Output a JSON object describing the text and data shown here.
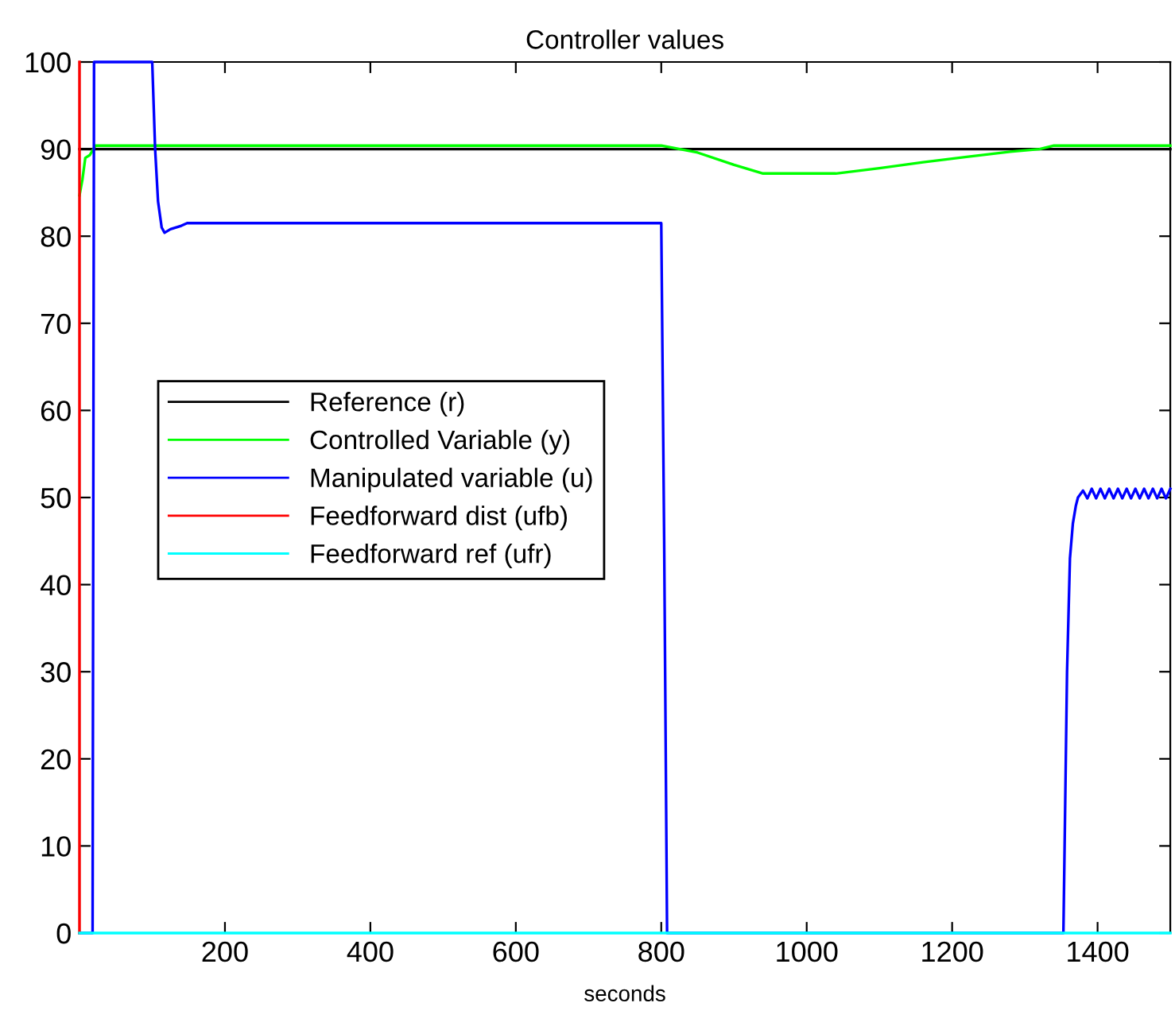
{
  "chart_data": {
    "type": "line",
    "title": "Controller values",
    "xlabel": "seconds",
    "xlim": [
      0,
      1500
    ],
    "xticks": [
      200,
      400,
      600,
      800,
      1000,
      1200,
      1400
    ],
    "ylim": [
      0,
      100
    ],
    "yticks": [
      0,
      10,
      20,
      30,
      40,
      50,
      60,
      70,
      80,
      90,
      100
    ],
    "grid": false,
    "legend": "left",
    "series": [
      {
        "name": "Reference (r)",
        "color": "#000000",
        "x": [
          0,
          1500
        ],
        "values": [
          90,
          90
        ]
      },
      {
        "name": "Controlled Variable (y)",
        "color": "#00ff00",
        "x": [
          0,
          4,
          8,
          14,
          22,
          800,
          850,
          900,
          940,
          1040,
          1100,
          1160,
          1220,
          1280,
          1320,
          1340,
          1500
        ],
        "values": [
          84.7,
          86.5,
          89,
          89.3,
          90.4,
          90.4,
          89.6,
          88.2,
          87.2,
          87.2,
          87.8,
          88.5,
          89.1,
          89.7,
          90.0,
          90.4,
          90.4
        ]
      },
      {
        "name": "Manipulated variable (u)",
        "color": "#0000ff",
        "x": [
          0,
          18,
          20,
          100,
          104,
          108,
          113,
          117,
          125,
          140,
          148,
          800,
          804,
          808,
          1353,
          1358,
          1362,
          1366,
          1370,
          1373,
          1380,
          1386,
          1392,
          1398,
          1404,
          1410,
          1416,
          1422,
          1428,
          1434,
          1440,
          1446,
          1452,
          1458,
          1464,
          1470,
          1476,
          1482,
          1488,
          1494,
          1500
        ],
        "values": [
          0,
          0,
          100,
          100,
          90,
          84,
          81,
          80.4,
          80.8,
          81.2,
          81.5,
          81.5,
          45,
          0,
          0,
          30,
          43,
          47,
          49,
          50,
          50.8,
          49.9,
          51,
          49.9,
          51,
          49.9,
          51,
          49.9,
          51,
          49.9,
          51,
          49.9,
          51,
          49.9,
          51,
          49.9,
          51,
          49.9,
          51,
          49.9,
          51
        ]
      },
      {
        "name": "Feedforward dist (ufb)",
        "color": "#ff0000",
        "x": [
          0,
          0
        ],
        "values": [
          100,
          0
        ]
      },
      {
        "name": "Feedforward ref (ufr)",
        "color": "#00ffff",
        "x": [
          0,
          1500
        ],
        "values": [
          0,
          0
        ]
      }
    ]
  }
}
